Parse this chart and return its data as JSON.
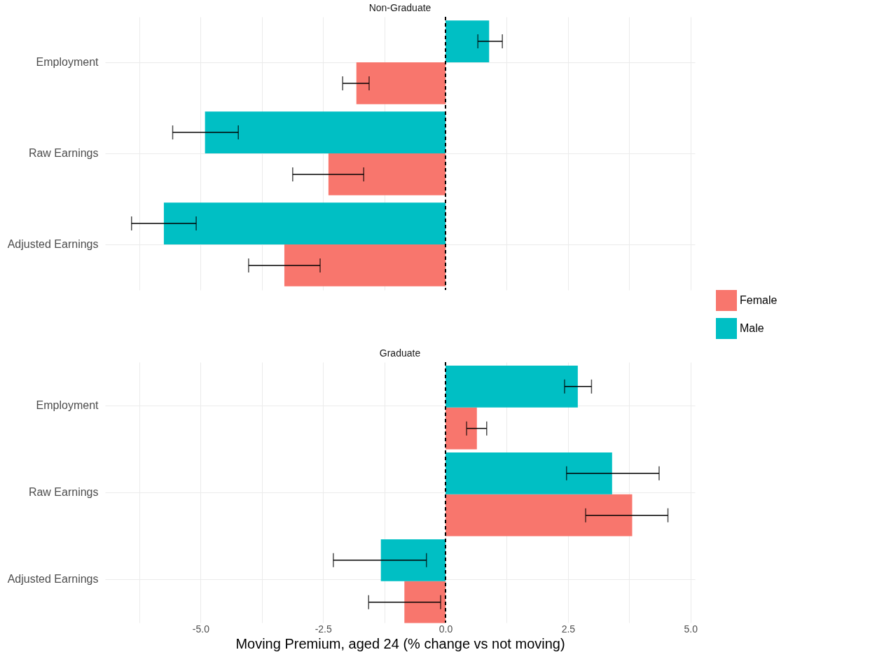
{
  "chart_data": [
    {
      "type": "bar",
      "orientation": "horizontal",
      "title": "Non-Graduate",
      "categories": [
        "Employment",
        "Raw Earnings",
        "Adjusted Earnings"
      ],
      "series": [
        {
          "name": "Female",
          "color": "#f8766d",
          "values": [
            -1.82,
            -2.39,
            -3.29
          ],
          "errors": [
            [
              -2.1,
              -1.56
            ],
            [
              -3.12,
              -1.67
            ],
            [
              -4.02,
              -2.56
            ]
          ]
        },
        {
          "name": "Male",
          "color": "#00bfc4",
          "values": [
            0.89,
            -4.91,
            -5.75
          ],
          "errors": [
            [
              0.66,
              1.16
            ],
            [
              -5.57,
              -4.23
            ],
            [
              -6.41,
              -5.09
            ]
          ]
        }
      ],
      "xlim": [
        -6.95,
        5.09
      ],
      "xticks": [
        {
          "value": -6.25,
          "label": null
        },
        {
          "value": -5,
          "label": null
        },
        {
          "value": -3.75,
          "label": null
        },
        {
          "value": -2.5,
          "label": null
        },
        {
          "value": -1.25,
          "label": null
        },
        {
          "value": 0,
          "label": null
        },
        {
          "value": 1.25,
          "label": null
        },
        {
          "value": 2.5,
          "label": null
        },
        {
          "value": 3.75,
          "label": null
        },
        {
          "value": 5,
          "label": null
        }
      ],
      "tick_labels": "y",
      "grid": true,
      "legend": "bottom right",
      "ref_lines": [
        {
          "axis": "x",
          "value": 0,
          "color": "#000000",
          "line_style": "dashed"
        }
      ]
    },
    {
      "type": "bar",
      "orientation": "horizontal",
      "title": "Graduate",
      "xlabel": "Moving Premium, aged 24 (% change vs not moving)",
      "categories": [
        "Employment",
        "Raw Earnings",
        "Adjusted Earnings"
      ],
      "series": [
        {
          "name": "Female",
          "color": "#f8766d",
          "values": [
            0.64,
            3.81,
            -0.84
          ],
          "errors": [
            [
              0.43,
              0.84
            ],
            [
              2.86,
              4.54
            ],
            [
              -1.57,
              -0.1
            ]
          ]
        },
        {
          "name": "Male",
          "color": "#00bfc4",
          "values": [
            2.7,
            3.4,
            -1.32
          ],
          "errors": [
            [
              2.43,
              2.98
            ],
            [
              2.47,
              4.36
            ],
            [
              -2.29,
              -0.39
            ]
          ]
        }
      ],
      "xlim": [
        -6.95,
        5.09
      ],
      "xticks": [
        {
          "value": -6.25,
          "label": null
        },
        {
          "value": -5,
          "label": "-5.0"
        },
        {
          "value": -3.75,
          "label": null
        },
        {
          "value": -2.5,
          "label": "-2.5"
        },
        {
          "value": -1.25,
          "label": null
        },
        {
          "value": 0,
          "label": "0.0"
        },
        {
          "value": 1.25,
          "label": null
        },
        {
          "value": 2.5,
          "label": "2.5"
        },
        {
          "value": 3.75,
          "label": null
        },
        {
          "value": 5,
          "label": "5.0"
        }
      ],
      "grid": true,
      "ref_lines": [
        {
          "axis": "x",
          "value": 0,
          "color": "#000000",
          "line_style": "dashed"
        }
      ]
    }
  ]
}
